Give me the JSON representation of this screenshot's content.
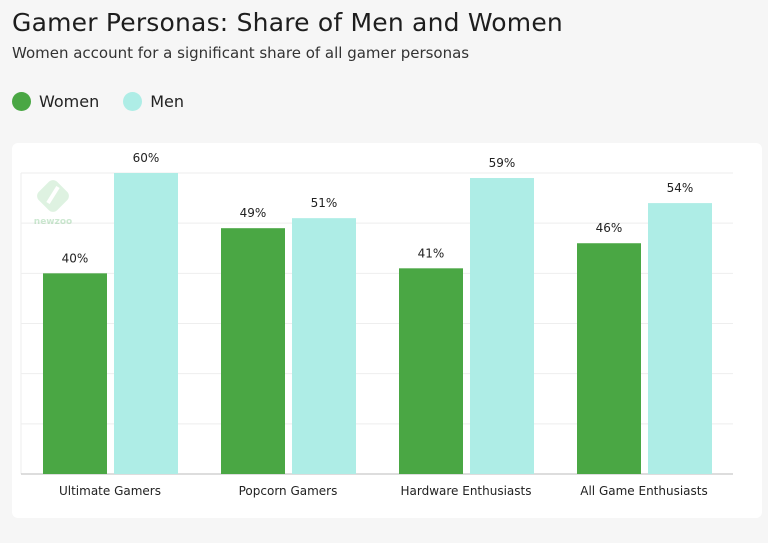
{
  "title": "Gamer Personas: Share of Men and Women",
  "subtitle": "Women account for a significant share of all gamer personas",
  "watermark": "newzoo",
  "chart_data": {
    "type": "bar",
    "categories": [
      "Ultimate Gamers",
      "Popcorn Gamers",
      "Hardware Enthusiasts",
      "All Game Enthusiasts"
    ],
    "series": [
      {
        "name": "Women",
        "values": [
          40,
          49,
          41,
          46
        ],
        "color": "#4aa744"
      },
      {
        "name": "Men",
        "values": [
          60,
          51,
          59,
          54
        ],
        "color": "#aeede6"
      }
    ],
    "data_labels": [
      [
        "40%",
        "49%",
        "41%",
        "46%"
      ],
      [
        "60%",
        "51%",
        "59%",
        "54%"
      ]
    ],
    "ylim": [
      0,
      60
    ],
    "ytick_step": 10,
    "grid": true,
    "legend": "top-left",
    "ylabel": "",
    "xlabel": ""
  }
}
